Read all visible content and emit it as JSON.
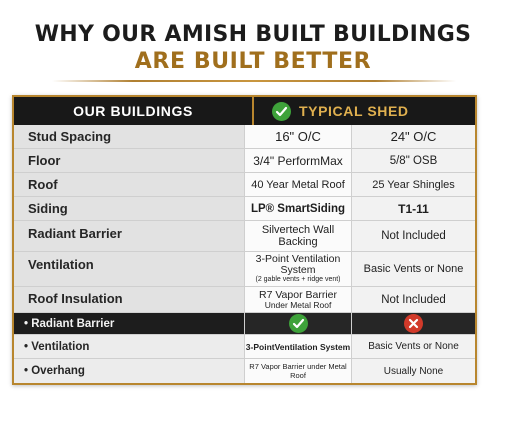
{
  "headline": {
    "line1": "WHY OUR AMISH BUILT BUILDINGS",
    "line2": "ARE BUILT BETTER"
  },
  "table": {
    "header": {
      "ours": "OUR BUILDINGS",
      "typical": "TYPICAL SHED"
    },
    "rows": [
      {
        "label": "Stud Spacing",
        "ours": "16\" O/C",
        "typical": "24\" O/C"
      },
      {
        "label": "Floor",
        "ours": "3/4\" PerformMax",
        "typical": "5/8\" OSB"
      },
      {
        "label": "Roof",
        "ours": "40 Year Metal Roof",
        "typical": "25 Year Shingles"
      },
      {
        "label": "Siding",
        "ours": "LP® SmartSiding",
        "typical": "T1-11"
      },
      {
        "label": "Radiant Barrier",
        "ours_line1": "Silvertech Wall",
        "ours_line2": "Backing",
        "typical": "Not Included"
      },
      {
        "label": "Ventilation",
        "ours_line1": "3-Point Ventilation",
        "ours_line2": "System",
        "ours_note": "(2 gable vents + ridge vent)",
        "typical": "Basic Vents or None"
      },
      {
        "label": "Roof Insulation",
        "ours_line1": "R7 Vapor Barrier",
        "ours_line2": "Under Metal Roof",
        "typical": "Not Included"
      }
    ],
    "bullets": [
      {
        "label": "Radiant Barrier",
        "ours_icon": "check-icon",
        "typical_icon": "x-icon"
      },
      {
        "label": "Ventilation",
        "ours": "3-PointVentilation System",
        "typical": "Basic Vents or None"
      },
      {
        "label": "Overhang",
        "ours": "R7 Vapor Barrier under Metal Roof",
        "typical": "Usually None"
      }
    ]
  },
  "colors": {
    "gold": "#b8862e",
    "green": "#3ea23a",
    "red": "#d23a2a",
    "header_bg": "#181818"
  }
}
